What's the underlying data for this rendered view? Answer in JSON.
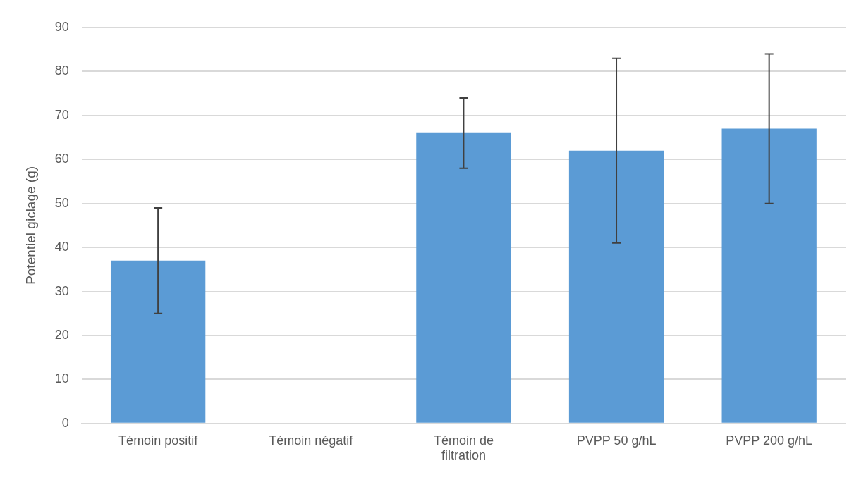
{
  "chart_data": {
    "type": "bar",
    "ylabel": "Potentiel giclage (g)",
    "categories": [
      "Témoin positif",
      "Témoin négatif",
      "Témoin de filtration",
      "PVPP 50 g/hL",
      "PVPP 200 g/hL"
    ],
    "values": [
      37,
      0,
      66,
      62,
      67
    ],
    "errors": [
      12,
      null,
      8,
      21,
      17
    ],
    "color": "#5b9bd5",
    "ylim": [
      0,
      90
    ],
    "yticks": [
      0,
      10,
      20,
      30,
      40,
      50,
      60,
      70,
      80,
      90
    ],
    "grid": "y",
    "legend": false
  }
}
